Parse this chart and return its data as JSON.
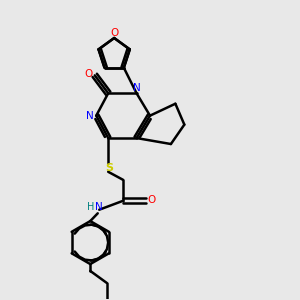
{
  "bg_color": "#e8e8e8",
  "bond_color": "#000000",
  "N_color": "#0000ff",
  "O_color": "#ff0000",
  "S_color": "#cccc00",
  "H_color": "#008080",
  "line_width": 1.8,
  "figsize": [
    3.0,
    3.0
  ],
  "dpi": 100,
  "xlim": [
    0,
    10
  ],
  "ylim": [
    0,
    10
  ]
}
